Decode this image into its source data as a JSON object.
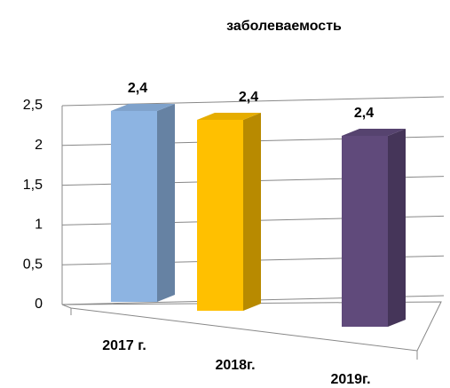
{
  "chart_data": {
    "type": "bar3d",
    "title": "заболеваемость",
    "categories": [
      "2017 г.",
      "2018г.",
      "2019г."
    ],
    "values": [
      2.4,
      2.4,
      2.4
    ],
    "value_labels": [
      "2,4",
      "2,4",
      "2,4"
    ],
    "colors": [
      "#8db4e2",
      "#ffc000",
      "#604a7b"
    ],
    "ylim": [
      0,
      2.5
    ],
    "yticks": [
      0,
      {
        "value": 0.5,
        "label": "0,5"
      },
      1,
      {
        "value": 1.5,
        "label": "1,5"
      },
      2,
      {
        "value": 2.5,
        "label": "2,5"
      }
    ],
    "grid": true
  }
}
